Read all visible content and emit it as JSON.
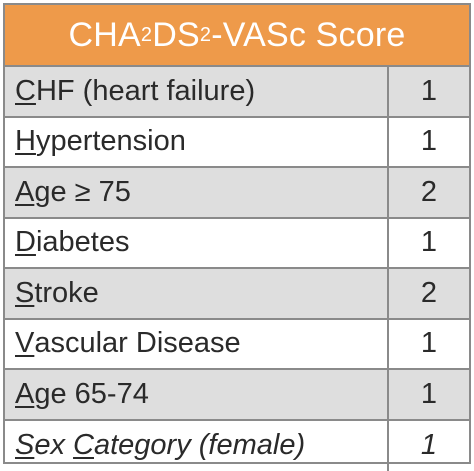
{
  "title": {
    "prefix": "CHA",
    "sub1": "2",
    "mid": "DS",
    "sub2": "2",
    "suffix": "-VASc Score"
  },
  "rows": [
    {
      "initial": "C",
      "rest": "HF (heart failure)",
      "score": "1"
    },
    {
      "initial": "H",
      "rest": "ypertension",
      "score": "1"
    },
    {
      "initial": "A",
      "rest": "ge ≥ 75",
      "score": "2"
    },
    {
      "initial": "D",
      "rest": "iabetes",
      "score": "1"
    },
    {
      "initial": "S",
      "rest": "troke",
      "score": "2"
    },
    {
      "initial": "V",
      "rest": "ascular Disease",
      "score": "1"
    },
    {
      "initial": "A",
      "rest": "ge 65-74",
      "score": "1"
    },
    {
      "initial": "S",
      "rest": "ex ",
      "initial2": "C",
      "rest2": "ategory (female)",
      "score": "1"
    }
  ],
  "colors": {
    "header": "#ee9a4a",
    "shade": "#dedede",
    "border": "#8a8a8a"
  }
}
